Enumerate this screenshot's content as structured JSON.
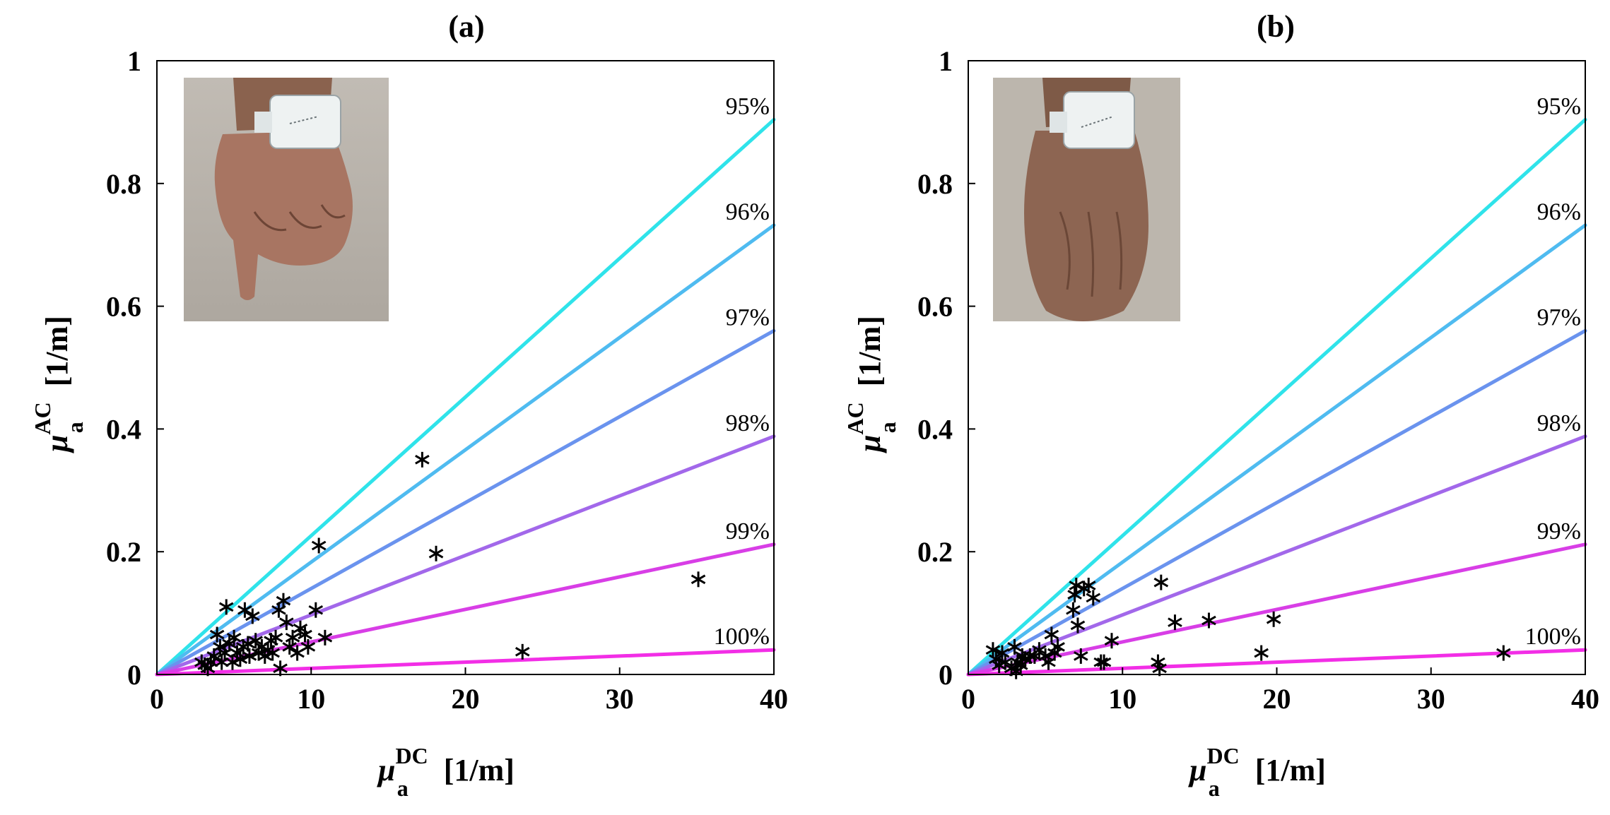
{
  "chart_data": [
    {
      "type": "scatter",
      "panel": "(a)",
      "inset_photo": "wrist-fist-photo",
      "x_var": "μ",
      "x_sub": "a",
      "x_sup": "DC",
      "x_unit": "[1/m]",
      "y_var": "μ",
      "y_sub": "a",
      "y_sup": "AC",
      "y_unit": "[1/m]",
      "xlim": [
        0,
        40
      ],
      "ylim": [
        0,
        1
      ],
      "xticks": [
        0,
        10,
        20,
        30,
        40
      ],
      "xtick_labels": [
        "0",
        "10",
        "20",
        "30",
        "40"
      ],
      "yticks": [
        0,
        0.2,
        0.4,
        0.6,
        0.8,
        1
      ],
      "ytick_labels": [
        "0",
        "0.2",
        "0.4",
        "0.6",
        "0.8",
        "1"
      ],
      "reference_lines": [
        {
          "label": "95%",
          "slope": 0.0226,
          "color": "#2fe3ea"
        },
        {
          "label": "96%",
          "slope": 0.0183,
          "color": "#4fbbf0"
        },
        {
          "label": "97%",
          "slope": 0.014,
          "color": "#6a93ee"
        },
        {
          "label": "98%",
          "slope": 0.0097,
          "color": "#a268ea"
        },
        {
          "label": "99%",
          "slope": 0.0053,
          "color": "#d83ee6"
        },
        {
          "label": "100%",
          "slope": 0.001,
          "color": "#f22ee6"
        }
      ],
      "points": [
        [
          2.9,
          0.02
        ],
        [
          3.1,
          0.015
        ],
        [
          3.3,
          0.01
        ],
        [
          3.5,
          0.02
        ],
        [
          3.7,
          0.03
        ],
        [
          3.9,
          0.065
        ],
        [
          4.1,
          0.045
        ],
        [
          4.2,
          0.02
        ],
        [
          4.4,
          0.035
        ],
        [
          4.5,
          0.11
        ],
        [
          4.7,
          0.05
        ],
        [
          4.9,
          0.02
        ],
        [
          5.0,
          0.06
        ],
        [
          5.2,
          0.035
        ],
        [
          5.4,
          0.025
        ],
        [
          5.6,
          0.045
        ],
        [
          5.7,
          0.105
        ],
        [
          5.9,
          0.05
        ],
        [
          6.0,
          0.03
        ],
        [
          6.2,
          0.095
        ],
        [
          6.4,
          0.055
        ],
        [
          6.6,
          0.035
        ],
        [
          6.8,
          0.045
        ],
        [
          7.0,
          0.03
        ],
        [
          7.2,
          0.04
        ],
        [
          7.4,
          0.055
        ],
        [
          7.5,
          0.035
        ],
        [
          7.7,
          0.06
        ],
        [
          7.9,
          0.105
        ],
        [
          8.0,
          0.01
        ],
        [
          8.2,
          0.12
        ],
        [
          8.4,
          0.085
        ],
        [
          8.6,
          0.045
        ],
        [
          8.8,
          0.06
        ],
        [
          9.1,
          0.035
        ],
        [
          9.3,
          0.075
        ],
        [
          9.6,
          0.065
        ],
        [
          9.8,
          0.045
        ],
        [
          10.3,
          0.105
        ],
        [
          10.5,
          0.21
        ],
        [
          10.9,
          0.06
        ],
        [
          17.2,
          0.35
        ],
        [
          18.1,
          0.197
        ],
        [
          23.7,
          0.037
        ],
        [
          35.1,
          0.155
        ]
      ]
    },
    {
      "type": "scatter",
      "panel": "(b)",
      "inset_photo": "wrist-open-photo",
      "x_var": "μ",
      "x_sub": "a",
      "x_sup": "DC",
      "x_unit": "[1/m]",
      "y_var": "μ",
      "y_sub": "a",
      "y_sup": "AC",
      "y_unit": "[1/m]",
      "xlim": [
        0,
        40
      ],
      "ylim": [
        0,
        1
      ],
      "xticks": [
        0,
        10,
        20,
        30,
        40
      ],
      "xtick_labels": [
        "0",
        "10",
        "20",
        "30",
        "40"
      ],
      "yticks": [
        0,
        0.2,
        0.4,
        0.6,
        0.8,
        1
      ],
      "ytick_labels": [
        "0",
        "0.2",
        "0.4",
        "0.6",
        "0.8",
        "1"
      ],
      "reference_lines": [
        {
          "label": "95%",
          "slope": 0.0226,
          "color": "#2fe3ea"
        },
        {
          "label": "96%",
          "slope": 0.0183,
          "color": "#4fbbf0"
        },
        {
          "label": "97%",
          "slope": 0.014,
          "color": "#6a93ee"
        },
        {
          "label": "98%",
          "slope": 0.0097,
          "color": "#a268ea"
        },
        {
          "label": "99%",
          "slope": 0.0053,
          "color": "#d83ee6"
        },
        {
          "label": "100%",
          "slope": 0.001,
          "color": "#f22ee6"
        }
      ],
      "points": [
        [
          1.6,
          0.04
        ],
        [
          1.8,
          0.025
        ],
        [
          2.0,
          0.015
        ],
        [
          2.2,
          0.035
        ],
        [
          2.4,
          0.02
        ],
        [
          2.8,
          0.01
        ],
        [
          3.0,
          0.045
        ],
        [
          3.1,
          0.005
        ],
        [
          3.2,
          0.02
        ],
        [
          3.4,
          0.015
        ],
        [
          3.5,
          0.03
        ],
        [
          3.7,
          0.025
        ],
        [
          4.0,
          0.03
        ],
        [
          4.3,
          0.03
        ],
        [
          4.6,
          0.04
        ],
        [
          5.0,
          0.03
        ],
        [
          5.2,
          0.02
        ],
        [
          5.4,
          0.065
        ],
        [
          5.6,
          0.035
        ],
        [
          5.8,
          0.045
        ],
        [
          6.8,
          0.105
        ],
        [
          6.9,
          0.13
        ],
        [
          7.0,
          0.145
        ],
        [
          7.1,
          0.08
        ],
        [
          7.3,
          0.03
        ],
        [
          7.5,
          0.14
        ],
        [
          7.8,
          0.145
        ],
        [
          8.1,
          0.125
        ],
        [
          8.6,
          0.02
        ],
        [
          8.8,
          0.02
        ],
        [
          9.3,
          0.055
        ],
        [
          12.3,
          0.02
        ],
        [
          12.4,
          0.01
        ],
        [
          12.5,
          0.15
        ],
        [
          13.4,
          0.085
        ],
        [
          15.6,
          0.088
        ],
        [
          19.0,
          0.035
        ],
        [
          19.8,
          0.09
        ],
        [
          34.7,
          0.035
        ]
      ]
    }
  ]
}
